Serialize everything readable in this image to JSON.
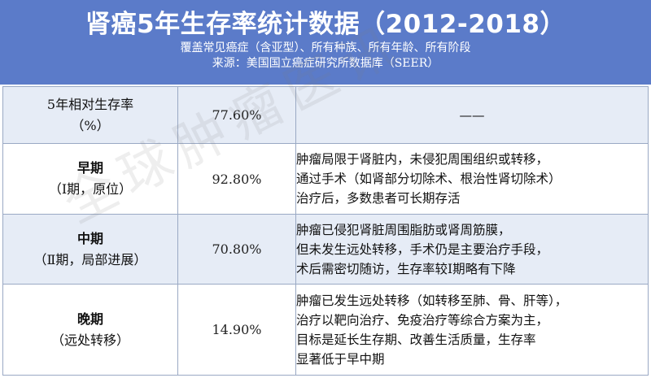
{
  "header": {
    "title": "肾癌5年生存率统计数据（2012-2018）",
    "subtitle_1": "覆盖常见癌症（含亚型）、所有种族、所有年龄、所有阶段",
    "subtitle_2": "来源：美国国立癌症研究所数据库（SEER）"
  },
  "rows": [
    {
      "stage_line1": "5年相对生存率",
      "stage_line2": "（%）",
      "rate": "77.60%",
      "desc": [
        "——"
      ]
    },
    {
      "stage_line1": "早期",
      "stage_line2": "（Ⅰ期，原位）",
      "rate": "92.80%",
      "desc": [
        "肿瘤局限于肾脏内，未侵犯周围组织或转移，",
        "通过手术（如肾部分切除术、根治性肾切除术）",
        "治疗后，多数患者可长期存活"
      ]
    },
    {
      "stage_line1": "中期",
      "stage_line2": "（Ⅱ期，局部进展）",
      "rate": "70.80%",
      "desc": [
        "肿瘤已侵犯肾脏周围脂肪或肾周筋膜，",
        "但未发生远处转移，手术仍是主要治疗手段，",
        "术后需密切随访，生存率较Ⅰ期略有下降"
      ]
    },
    {
      "stage_line1": "晚期",
      "stage_line2": "（远处转移）",
      "rate": "14.90%",
      "desc": [
        "肿瘤已发生远处转移（如转移至肺、骨、肝等），",
        "治疗以靶向治疗、免疫治疗等综合方案为主，",
        "目标是延长生存期、改善生活质量，生存率",
        "显著低于早中期"
      ]
    }
  ],
  "watermark": "全球肿瘤医讯",
  "colors": {
    "header_bg": "#5b7bc9",
    "row_alt_bg": "#e6ecf6",
    "border": "#9aa9c4"
  }
}
